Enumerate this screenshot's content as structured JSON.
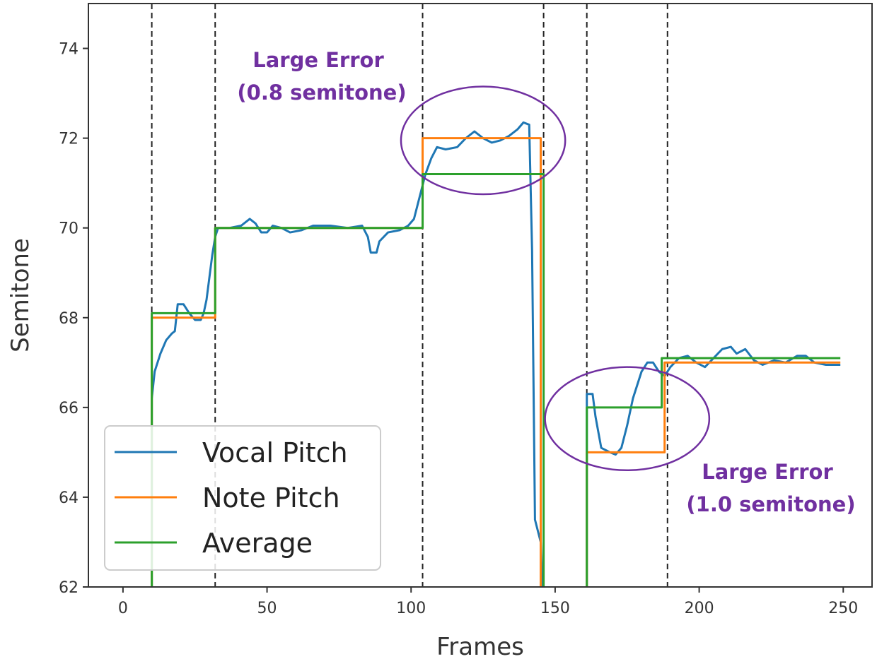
{
  "chart_data": {
    "type": "line",
    "title": "",
    "xlabel": "Frames",
    "ylabel": "Semitone",
    "xlim": [
      -12,
      260
    ],
    "ylim": [
      62,
      75
    ],
    "xticks": [
      0,
      50,
      100,
      150,
      200,
      250
    ],
    "yticks": [
      62,
      64,
      66,
      68,
      70,
      72,
      74
    ],
    "grid": false,
    "legend_position": "lower-left",
    "boundaries": [
      10,
      32,
      104,
      146,
      161,
      189
    ],
    "series": [
      {
        "name": "Vocal Pitch",
        "color": "#1f77b4",
        "points": [
          [
            10,
            62
          ],
          [
            10,
            66.2
          ],
          [
            11,
            66.8
          ],
          [
            13,
            67.2
          ],
          [
            15,
            67.5
          ],
          [
            17,
            67.65
          ],
          [
            18,
            67.7
          ],
          [
            19,
            68.3
          ],
          [
            21,
            68.3
          ],
          [
            22,
            68.2
          ],
          [
            23,
            68.1
          ],
          [
            25,
            67.95
          ],
          [
            27,
            67.95
          ],
          [
            28,
            68.1
          ],
          [
            29,
            68.4
          ],
          [
            30,
            68.9
          ],
          [
            31,
            69.4
          ],
          [
            32,
            69.8
          ],
          [
            33,
            70.0
          ],
          [
            37,
            70.0
          ],
          [
            41,
            70.05
          ],
          [
            44,
            70.2
          ],
          [
            46,
            70.1
          ],
          [
            48,
            69.9
          ],
          [
            50,
            69.9
          ],
          [
            52,
            70.05
          ],
          [
            55,
            70.0
          ],
          [
            58,
            69.9
          ],
          [
            62,
            69.95
          ],
          [
            66,
            70.05
          ],
          [
            72,
            70.05
          ],
          [
            78,
            70.0
          ],
          [
            83,
            70.05
          ],
          [
            85,
            69.8
          ],
          [
            86,
            69.45
          ],
          [
            88,
            69.45
          ],
          [
            89,
            69.7
          ],
          [
            92,
            69.9
          ],
          [
            96,
            69.95
          ],
          [
            99,
            70.05
          ],
          [
            101,
            70.2
          ],
          [
            103,
            70.7
          ],
          [
            105,
            71.2
          ],
          [
            107,
            71.55
          ],
          [
            109,
            71.8
          ],
          [
            112,
            71.75
          ],
          [
            116,
            71.8
          ],
          [
            119,
            72.0
          ],
          [
            122,
            72.15
          ],
          [
            125,
            72.0
          ],
          [
            128,
            71.9
          ],
          [
            131,
            71.95
          ],
          [
            134,
            72.05
          ],
          [
            137,
            72.2
          ],
          [
            139,
            72.35
          ],
          [
            141,
            72.3
          ],
          [
            142,
            69.5
          ],
          [
            143,
            63.5
          ],
          [
            145,
            63.0
          ],
          [
            145.5,
            62
          ]
        ]
      },
      {
        "name": "Note Pitch",
        "color": "#ff7f0e",
        "points": [
          [
            10,
            62
          ],
          [
            10,
            68.0
          ],
          [
            32,
            68.0
          ],
          [
            32,
            70.0
          ],
          [
            104,
            70.0
          ],
          [
            104,
            72.0
          ],
          [
            145,
            72.0
          ],
          [
            145,
            62
          ]
        ]
      },
      {
        "name": "Average",
        "color": "#2ca02c",
        "points": [
          [
            10,
            62
          ],
          [
            10,
            68.1
          ],
          [
            32,
            68.1
          ],
          [
            32,
            70.0
          ],
          [
            104,
            70.0
          ],
          [
            104,
            71.2
          ],
          [
            146,
            71.2
          ],
          [
            146,
            62
          ]
        ]
      }
    ],
    "series_segment_2": [
      {
        "name": "Vocal Pitch",
        "points": [
          [
            161,
            62
          ],
          [
            161,
            66.3
          ],
          [
            163,
            66.3
          ],
          [
            164,
            65.8
          ],
          [
            166,
            65.1
          ],
          [
            169,
            65.0
          ],
          [
            171,
            64.95
          ],
          [
            173,
            65.1
          ],
          [
            175,
            65.6
          ],
          [
            177,
            66.2
          ],
          [
            180,
            66.8
          ],
          [
            182,
            67.0
          ],
          [
            184,
            67.0
          ],
          [
            186,
            66.8
          ],
          [
            188,
            66.7
          ],
          [
            190,
            66.9
          ],
          [
            193,
            67.1
          ],
          [
            196,
            67.15
          ],
          [
            199,
            67.0
          ],
          [
            202,
            66.9
          ],
          [
            205,
            67.1
          ],
          [
            208,
            67.3
          ],
          [
            211,
            67.35
          ],
          [
            213,
            67.2
          ],
          [
            216,
            67.3
          ],
          [
            219,
            67.05
          ],
          [
            222,
            66.95
          ],
          [
            226,
            67.05
          ],
          [
            230,
            67.0
          ],
          [
            234,
            67.15
          ],
          [
            237,
            67.15
          ],
          [
            240,
            67.0
          ],
          [
            244,
            66.95
          ],
          [
            249,
            66.95
          ]
        ]
      },
      {
        "name": "Note Pitch",
        "points": [
          [
            161,
            62
          ],
          [
            161,
            65.0
          ],
          [
            188,
            65.0
          ],
          [
            188,
            67.0
          ],
          [
            249,
            67.0
          ]
        ]
      },
      {
        "name": "Average",
        "points": [
          [
            161,
            62
          ],
          [
            161,
            66.0
          ],
          [
            187,
            66.0
          ],
          [
            187,
            67.1
          ],
          [
            249,
            67.1
          ]
        ]
      }
    ],
    "annotations": [
      {
        "line1": "Large Error",
        "line2": "(0.8 semitone)",
        "color": "#7030a0",
        "ellipse_center": [
          125,
          71.95
        ],
        "ellipse_radii": [
          28.5,
          1.2
        ]
      },
      {
        "line1": "Large Error",
        "line2": "(1.0 semitone)",
        "color": "#7030a0",
        "ellipse_center": [
          175,
          65.75
        ],
        "ellipse_radii": [
          28.5,
          1.15
        ]
      }
    ]
  }
}
